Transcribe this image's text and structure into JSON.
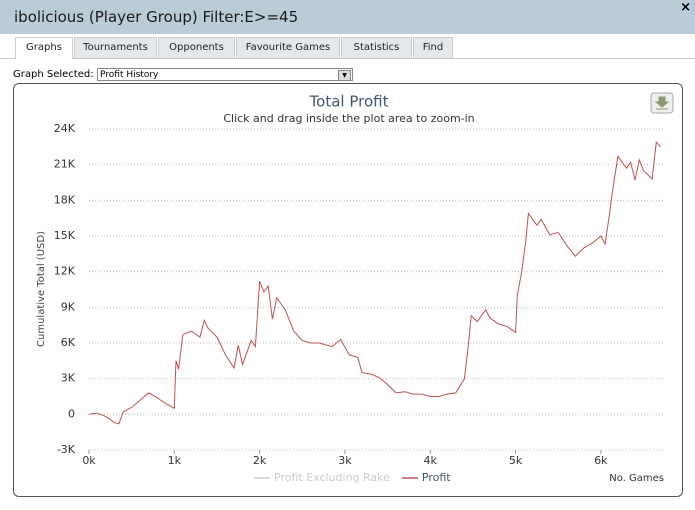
{
  "window": {
    "title": "ibolicious (Player Group) Filter:E>=45",
    "close": "×"
  },
  "tabs": [
    "Graphs",
    "Tournaments",
    "Opponents",
    "Favourite Games",
    "Statistics",
    "Find"
  ],
  "active_tab": 0,
  "graph_selector": {
    "label": "Graph Selected:",
    "value": "Profit History"
  },
  "chart_data": {
    "type": "line",
    "title": "Total Profit",
    "subtitle": "Click and drag inside the plot area to zoom-in",
    "y_label": "Cumulative Total (USD)",
    "x_label": "No. Games",
    "grid": true,
    "xlim": [
      0,
      6740
    ],
    "ylim": [
      -3000,
      24000
    ],
    "xticks": [
      {
        "value": 0,
        "label": "0k"
      },
      {
        "value": 1000,
        "label": "1k"
      },
      {
        "value": 2000,
        "label": "2k"
      },
      {
        "value": 3000,
        "label": "3k"
      },
      {
        "value": 4000,
        "label": "4k"
      },
      {
        "value": 5000,
        "label": "5k"
      },
      {
        "value": 6000,
        "label": "6k"
      }
    ],
    "yticks": [
      {
        "value": -3000,
        "label": "-3K"
      },
      0,
      {
        "value": 3000,
        "label": "3K"
      },
      {
        "value": 6000,
        "label": "6K"
      },
      {
        "value": 9000,
        "label": "9K"
      },
      {
        "value": 12000,
        "label": "12K"
      },
      {
        "value": 15000,
        "label": "15K"
      },
      {
        "value": 18000,
        "label": "18K"
      },
      {
        "value": 21000,
        "label": "21K"
      },
      {
        "value": 24000,
        "label": "24K"
      }
    ],
    "x": [
      0,
      100,
      200,
      300,
      350,
      400,
      500,
      600,
      700,
      800,
      900,
      1000,
      1020,
      1050,
      1100,
      1200,
      1300,
      1350,
      1400,
      1500,
      1600,
      1700,
      1750,
      1800,
      1900,
      1950,
      2000,
      2050,
      2100,
      2150,
      2200,
      2300,
      2400,
      2500,
      2600,
      2700,
      2850,
      2950,
      3050,
      3150,
      3200,
      3300,
      3400,
      3500,
      3600,
      3700,
      3800,
      3900,
      4000,
      4100,
      4200,
      4300,
      4350,
      4400,
      4450,
      4480,
      4550,
      4650,
      4700,
      4800,
      4900,
      5000,
      5020,
      5070,
      5120,
      5150,
      5250,
      5300,
      5400,
      5500,
      5600,
      5700,
      5800,
      5900,
      6000,
      6050,
      6100,
      6130,
      6200,
      6300,
      6350,
      6400,
      6450,
      6500,
      6600,
      6650,
      6700
    ],
    "series": [
      {
        "name": "Profit Excluding Rake",
        "color": "#cccccc",
        "visible": false
      },
      {
        "name": "Profit",
        "color": "#c0504d",
        "visible": true,
        "values": [
          0,
          100,
          -200,
          -700,
          -800,
          200,
          600,
          1200,
          1800,
          1400,
          900,
          500,
          4500,
          3800,
          6700,
          7000,
          6500,
          7900,
          7200,
          6500,
          5000,
          3900,
          5800,
          4200,
          6200,
          5700,
          11200,
          10300,
          10800,
          8000,
          9800,
          8800,
          7000,
          6200,
          6000,
          6000,
          5700,
          6300,
          5000,
          4800,
          3500,
          3400,
          3100,
          2500,
          1800,
          1900,
          1700,
          1700,
          1500,
          1500,
          1700,
          1800,
          2400,
          3000,
          6000,
          8300,
          7800,
          8800,
          8100,
          7600,
          7400,
          6900,
          10000,
          11900,
          14600,
          16900,
          15900,
          16400,
          15100,
          15300,
          14200,
          13300,
          14000,
          14400,
          15000,
          14300,
          16800,
          18500,
          21700,
          20700,
          21200,
          19700,
          21400,
          20500,
          19800,
          22900,
          22500
        ]
      }
    ]
  }
}
